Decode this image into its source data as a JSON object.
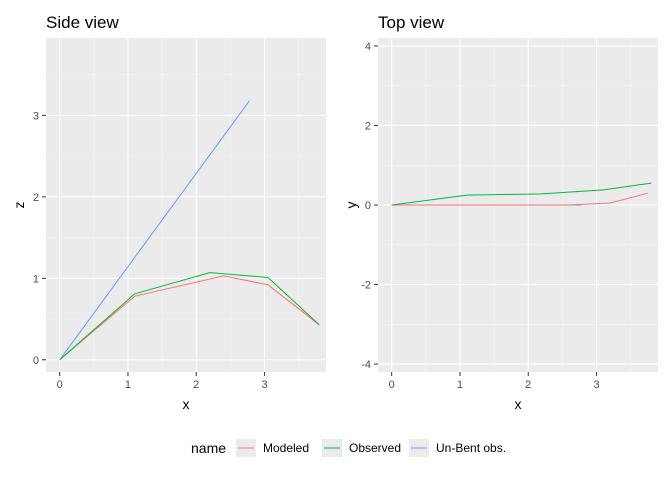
{
  "chart_data": [
    {
      "type": "line",
      "title": "Side view",
      "xlabel": "x",
      "ylabel": "z",
      "xlim": [
        -0.2,
        3.9
      ],
      "ylim": [
        -0.15,
        3.95
      ],
      "xticks": [
        0,
        1,
        2,
        3
      ],
      "yticks": [
        0,
        1,
        2,
        3
      ],
      "grid": true,
      "series": [
        {
          "name": "Un-Bent obs.",
          "x": [
            0,
            2.78
          ],
          "y": [
            0,
            3.18
          ]
        },
        {
          "name": "Modeled",
          "x": [
            0,
            1.1,
            2.4,
            3.05,
            3.8
          ],
          "y": [
            0,
            0.78,
            1.03,
            0.92,
            0.43
          ]
        },
        {
          "name": "Observed",
          "x": [
            0,
            1.1,
            2.2,
            3.05,
            3.8
          ],
          "y": [
            0,
            0.81,
            1.07,
            1.01,
            0.43
          ]
        }
      ]
    },
    {
      "type": "line",
      "title": "Top view",
      "xlabel": "x",
      "ylabel": "y",
      "xlim": [
        -0.2,
        3.9
      ],
      "ylim": [
        -4.2,
        4.2
      ],
      "xticks": [
        0,
        1,
        2,
        3
      ],
      "yticks": [
        -4,
        -2,
        0,
        2,
        4
      ],
      "grid": true,
      "series": [
        {
          "name": "Un-Bent obs.",
          "x": [
            0,
            2.78
          ],
          "y": [
            0,
            0
          ]
        },
        {
          "name": "Modeled",
          "x": [
            0,
            2.6,
            3.2,
            3.75
          ],
          "y": [
            0,
            0,
            0.05,
            0.3
          ]
        },
        {
          "name": "Observed",
          "x": [
            0,
            1.1,
            2.2,
            3.1,
            3.8
          ],
          "y": [
            0,
            0.25,
            0.28,
            0.38,
            0.55
          ]
        }
      ]
    }
  ],
  "legend": {
    "title": "name",
    "position": "bottom",
    "items": [
      {
        "label": "Modeled",
        "color": "#F8766D"
      },
      {
        "label": "Observed",
        "color": "#00BA38"
      },
      {
        "label": "Un-Bent obs.",
        "color": "#619CFF"
      }
    ]
  },
  "colors": {
    "panel_background": "#EBEBEB",
    "grid_major": "#FFFFFF",
    "grid_minor": "#F5F5F5"
  }
}
